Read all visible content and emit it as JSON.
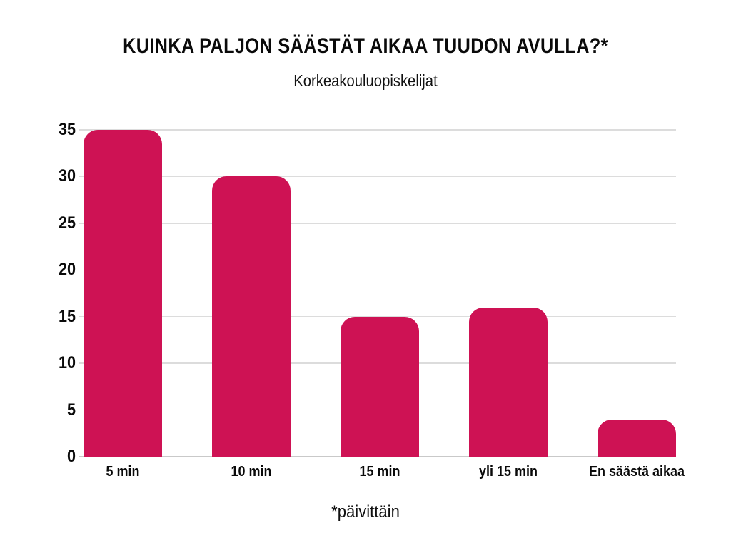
{
  "chart_data": {
    "type": "bar",
    "title": "KUINKA PALJON SÄÄSTÄT AIKAA TUUDON AVULLA?*",
    "subtitle": "Korkeakouluopiskelijat",
    "footnote": "*päivittäin",
    "categories": [
      "5 min",
      "10 min",
      "15 min",
      "yli 15 min",
      "En säästä aikaa"
    ],
    "values": [
      35,
      30,
      15,
      16,
      4
    ],
    "ylim": [
      0,
      35
    ],
    "yticks": [
      0,
      5,
      10,
      15,
      20,
      25,
      30,
      35
    ],
    "xlabel": "",
    "ylabel": "",
    "grid": true,
    "legend": "none",
    "colors": {
      "bar": "#CE1254",
      "gridline": "#DCDCDC",
      "zero_line": "#C9C9C9",
      "text": "#0A0A0A",
      "background": "#FFFFFF"
    }
  }
}
